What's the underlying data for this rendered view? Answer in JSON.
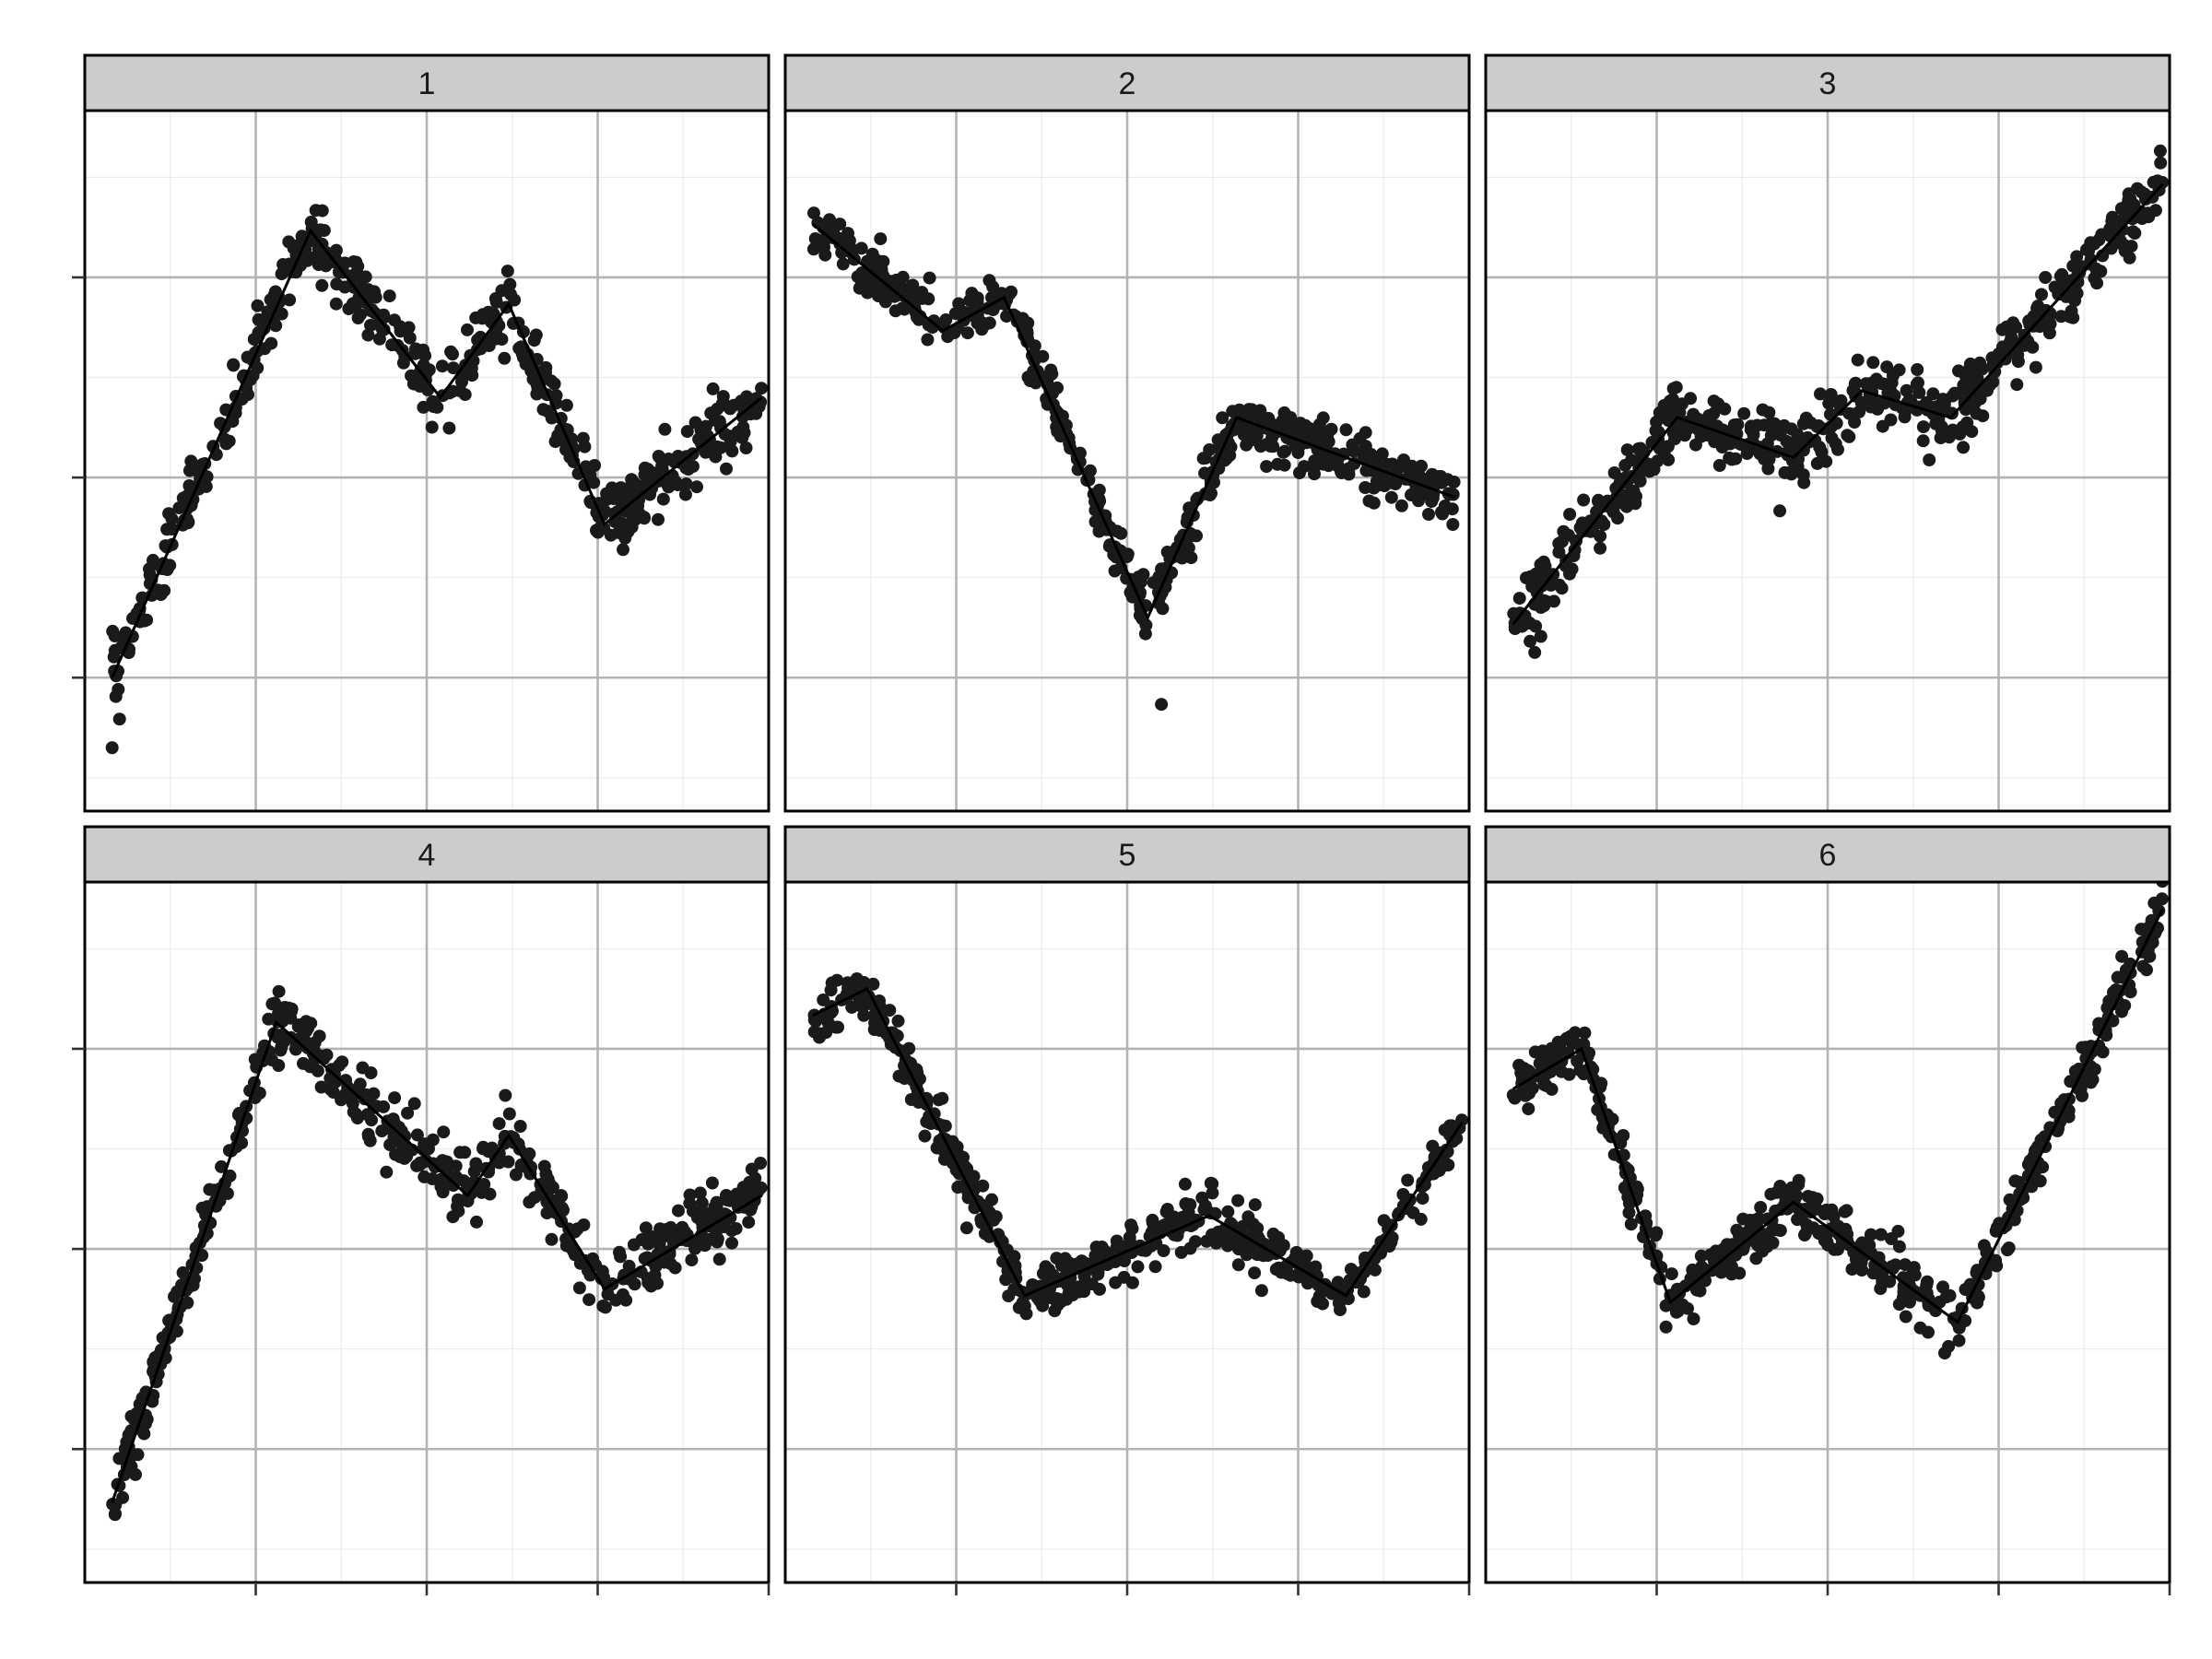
{
  "chart_data": {
    "type": "scatter",
    "x_range": [
      0,
      1
    ],
    "y_range": [
      -0.05,
      1.0
    ],
    "grid": true,
    "style": {
      "point_color": "#1a1a1a",
      "line_color": "#000000",
      "strip_fill": "#cccccc",
      "grid_color": "#b3b3b3",
      "minor_grid_color": "#ebebeb"
    },
    "panels": [
      {
        "label": "1",
        "trend": [
          [
            0.04,
            0.15
          ],
          [
            0.33,
            0.82
          ],
          [
            0.52,
            0.57
          ],
          [
            0.62,
            0.71
          ],
          [
            0.76,
            0.38
          ],
          [
            0.99,
            0.57
          ]
        ],
        "noise": 0.025,
        "outliers": [
          [
            0.04,
            0.045
          ]
        ]
      },
      {
        "label": "2",
        "trend": [
          [
            0.04,
            0.83
          ],
          [
            0.23,
            0.67
          ],
          [
            0.32,
            0.72
          ],
          [
            0.53,
            0.24
          ],
          [
            0.66,
            0.54
          ],
          [
            0.98,
            0.42
          ]
        ],
        "noise": 0.02,
        "outliers": [
          [
            0.55,
            0.11
          ]
        ]
      },
      {
        "label": "3",
        "trend": [
          [
            0.04,
            0.23
          ],
          [
            0.28,
            0.54
          ],
          [
            0.45,
            0.48
          ],
          [
            0.55,
            0.58
          ],
          [
            0.68,
            0.54
          ],
          [
            0.99,
            0.89
          ]
        ],
        "noise": 0.025,
        "outliers": [
          [
            0.43,
            0.4
          ]
        ]
      },
      {
        "label": "4",
        "trend": [
          [
            0.04,
            0.07
          ],
          [
            0.28,
            0.79
          ],
          [
            0.56,
            0.53
          ],
          [
            0.62,
            0.62
          ],
          [
            0.76,
            0.39
          ],
          [
            0.99,
            0.53
          ]
        ],
        "noise": 0.025,
        "outliers": []
      },
      {
        "label": "5",
        "trend": [
          [
            0.04,
            0.8
          ],
          [
            0.12,
            0.84
          ],
          [
            0.35,
            0.38
          ],
          [
            0.62,
            0.5
          ],
          [
            0.82,
            0.38
          ],
          [
            0.99,
            0.64
          ]
        ],
        "noise": 0.02,
        "outliers": []
      },
      {
        "label": "6",
        "trend": [
          [
            0.04,
            0.69
          ],
          [
            0.14,
            0.75
          ],
          [
            0.27,
            0.37
          ],
          [
            0.45,
            0.52
          ],
          [
            0.69,
            0.34
          ],
          [
            0.99,
            0.96
          ]
        ],
        "noise": 0.02,
        "outliers": []
      }
    ]
  }
}
